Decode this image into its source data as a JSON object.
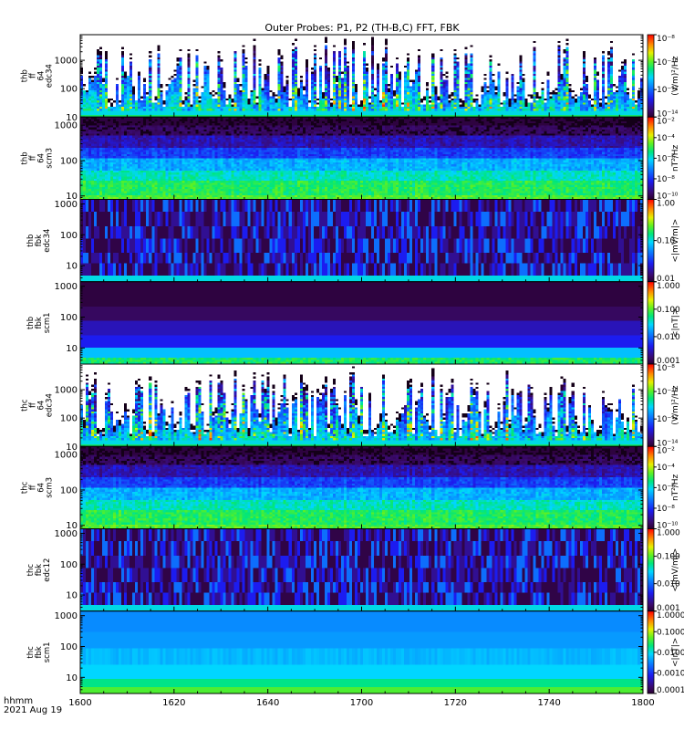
{
  "chart_data": {
    "type": "heatmap",
    "title": "Outer Probes: P1, P2 (TH-B,C) FFT, FBK",
    "time_label": "hhmm",
    "date_label": "2021 Aug 19",
    "x_ticks": [
      "1600",
      "1620",
      "1640",
      "1700",
      "1720",
      "1740",
      "1800"
    ],
    "x_range": [
      "1600",
      "1800"
    ],
    "y_scale": "log",
    "panels": [
      {
        "ylabel_lines": [
          "thb",
          "ff",
          "64",
          "edc34"
        ],
        "y_range": [
          10,
          8000
        ],
        "y_ticks": [
          "10",
          "100",
          "1000"
        ],
        "colorbar": {
          "scale": "log",
          "unit": "(V/m)²/Hz",
          "ticks": [
            "10⁻⁸",
            "10⁻¹⁰",
            "10⁻¹²",
            "10⁻¹⁴"
          ],
          "range": [
            -14,
            -8
          ]
        },
        "style": "bursty_efield"
      },
      {
        "ylabel_lines": [
          "thb",
          "ff",
          "64",
          "scm3"
        ],
        "y_range": [
          8,
          1700
        ],
        "y_ticks": [
          "10",
          "100",
          "1000"
        ],
        "colorbar": {
          "scale": "log",
          "unit": "nT²/Hz",
          "ticks": [
            "10⁻²",
            "10⁻⁴",
            "10⁻⁶",
            "10⁻⁸",
            "10⁻¹⁰"
          ],
          "range": [
            -10,
            -2
          ]
        },
        "style": "scm_background"
      },
      {
        "ylabel_lines": [
          "thb",
          "fbk",
          "edc34"
        ],
        "y_range": [
          3,
          1400
        ],
        "y_ticks": [
          "10",
          "100",
          "1000"
        ],
        "colorbar": {
          "scale": "log",
          "unit": "<|mV/m|>",
          "ticks": [
            "1.00",
            "0.10",
            "0.01"
          ],
          "range": [
            -2,
            0
          ]
        },
        "style": "fbk_efield"
      },
      {
        "ylabel_lines": [
          "thb",
          "fbk",
          "scm1"
        ],
        "y_range": [
          3,
          1400
        ],
        "y_ticks": [
          "10",
          "100",
          "1000"
        ],
        "colorbar": {
          "scale": "log",
          "unit": "<|nT|>",
          "ticks": [
            "1.000",
            "0.100",
            "0.010",
            "0.001"
          ],
          "range": [
            -3,
            0
          ]
        },
        "style": "fbk_scm"
      },
      {
        "ylabel_lines": [
          "thc",
          "ff",
          "64",
          "edc34"
        ],
        "y_range": [
          10,
          8000
        ],
        "y_ticks": [
          "10",
          "100",
          "1000"
        ],
        "colorbar": {
          "scale": "log",
          "unit": "(V/m)²/Hz",
          "ticks": [
            "10⁻⁸",
            "10⁻¹⁰",
            "10⁻¹²",
            "10⁻¹⁴"
          ],
          "range": [
            -14,
            -8
          ]
        },
        "style": "bursty_efield"
      },
      {
        "ylabel_lines": [
          "thc",
          "ff",
          "64",
          "scm3"
        ],
        "y_range": [
          8,
          1700
        ],
        "y_ticks": [
          "10",
          "100",
          "1000"
        ],
        "colorbar": {
          "scale": "log",
          "unit": "nT²/Hz",
          "ticks": [
            "10⁻²",
            "10⁻⁴",
            "10⁻⁶",
            "10⁻⁸",
            "10⁻¹⁰"
          ],
          "range": [
            -10,
            -2
          ]
        },
        "style": "scm_background"
      },
      {
        "ylabel_lines": [
          "thc",
          "fbk",
          "edc12"
        ],
        "y_range": [
          3,
          1400
        ],
        "y_ticks": [
          "10",
          "100",
          "1000"
        ],
        "colorbar": {
          "scale": "log",
          "unit": "<|mV/m|>",
          "ticks": [
            "1.000",
            "0.100",
            "0.010",
            "0.001"
          ],
          "range": [
            -3,
            0
          ]
        },
        "style": "fbk_efield"
      },
      {
        "ylabel_lines": [
          "thc",
          "fbk",
          "scm1"
        ],
        "y_range": [
          3,
          1400
        ],
        "y_ticks": [
          "10",
          "100",
          "1000"
        ],
        "colorbar": {
          "scale": "log",
          "unit": "<|nT|>",
          "ticks": [
            "1.0000",
            "0.1000",
            "0.0100",
            "0.0010",
            "0.0001"
          ],
          "range": [
            -4,
            0
          ]
        },
        "style": "fbk_scm_quiet"
      }
    ]
  }
}
